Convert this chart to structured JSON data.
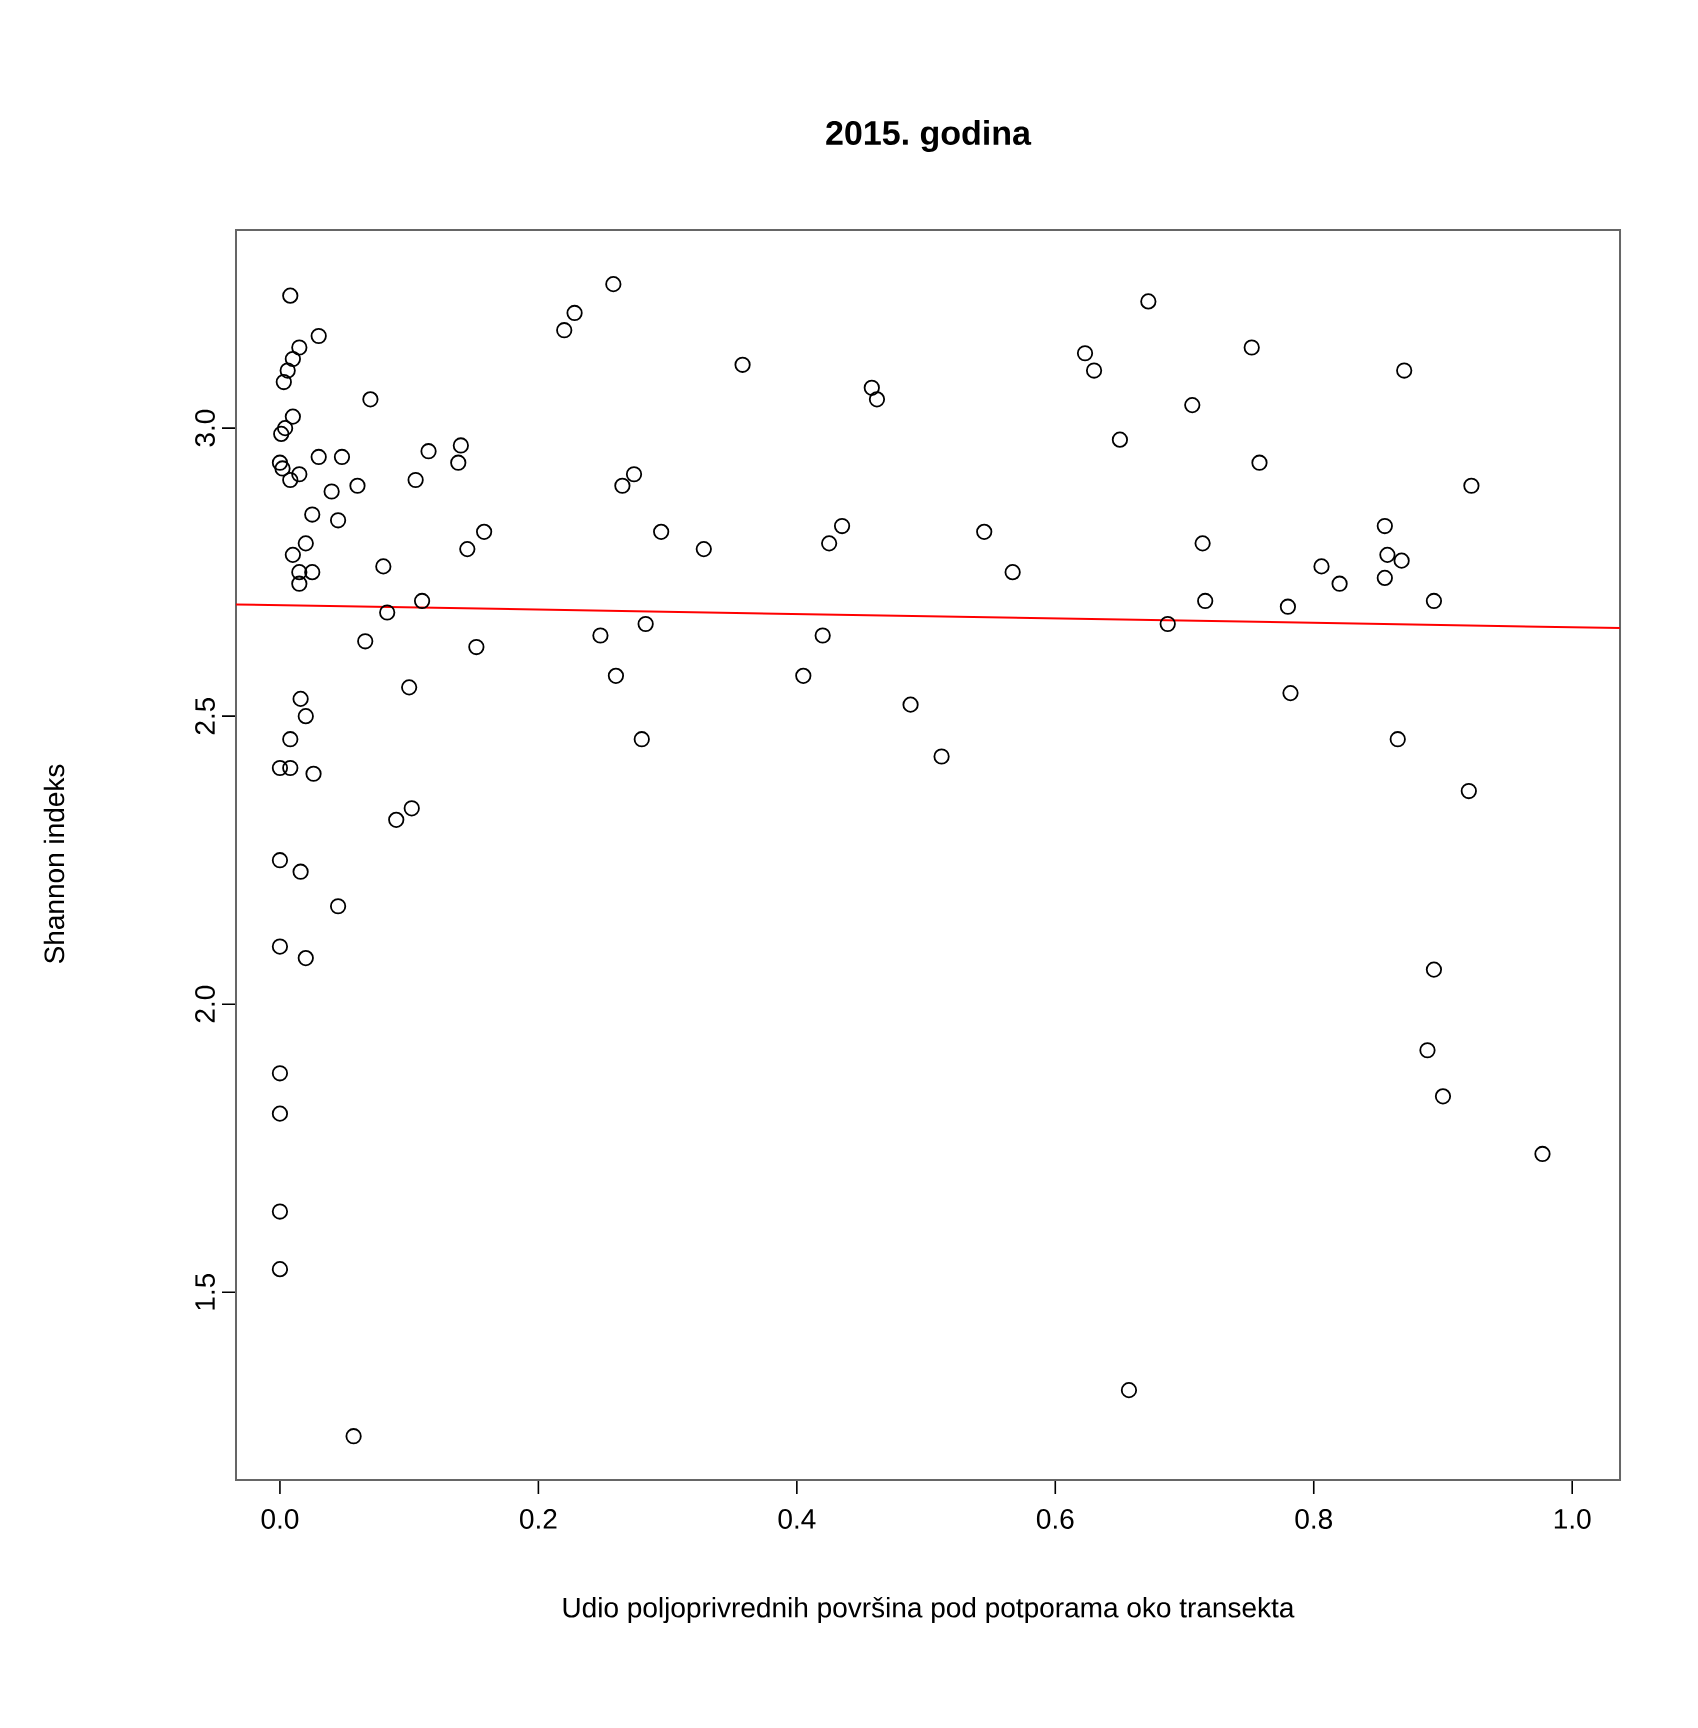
{
  "chart_data": {
    "type": "scatter",
    "title": "2015. godina",
    "xlabel": "Udio poljoprivrednih površina pod potporama oko transekta",
    "ylabel": "Shannon indeks",
    "xlim": [
      -0.034,
      1.037
    ],
    "ylim": [
      1.174,
      3.344
    ],
    "xticks": [
      {
        "value": 0,
        "label": "0.0"
      },
      0.2,
      0.4,
      0.6,
      0.8,
      {
        "value": 1,
        "label": "1.0"
      }
    ],
    "yticks": [
      1.5,
      {
        "value": 2,
        "label": "2.0"
      },
      2.5,
      {
        "value": 3,
        "label": "3.0"
      }
    ],
    "series": [
      {
        "marker": "circle",
        "color": "#000000",
        "x": [
          0.008,
          0.003,
          0.006,
          0.01,
          0.015,
          0.03,
          0.001,
          0.004,
          0.01,
          0.0,
          0.002,
          0.008,
          0.015,
          0.03,
          0.048,
          0.04,
          0.06,
          0.01,
          0.02,
          0.015,
          0.025,
          0.015,
          0.045,
          0.025,
          0.016,
          0.02,
          0.008,
          0.0,
          0.008,
          0.026,
          0.0,
          0.016,
          0.0,
          0.045,
          0.02,
          0.0,
          0.0,
          0.0,
          0.0,
          0.057,
          0.07,
          0.08,
          0.083,
          0.066,
          0.1,
          0.09,
          0.102,
          0.105,
          0.115,
          0.14,
          0.138,
          0.11,
          0.145,
          0.158,
          0.152,
          0.22,
          0.228,
          0.258,
          0.265,
          0.274,
          0.295,
          0.248,
          0.26,
          0.283,
          0.28,
          0.328,
          0.358,
          0.405,
          0.42,
          0.425,
          0.435,
          0.458,
          0.462,
          0.488,
          0.512,
          0.545,
          0.567,
          0.623,
          0.63,
          0.65,
          0.672,
          0.657,
          0.687,
          0.706,
          0.714,
          0.716,
          0.752,
          0.758,
          0.78,
          0.782,
          0.806,
          0.82,
          0.855,
          0.857,
          0.855,
          0.868,
          0.865,
          0.87,
          0.893,
          0.92,
          0.922,
          0.893,
          0.888,
          0.9,
          0.977
        ],
        "values": [
          3.23,
          3.08,
          3.1,
          3.12,
          3.14,
          3.16,
          2.99,
          3.0,
          3.02,
          2.94,
          2.93,
          2.91,
          2.92,
          2.95,
          2.95,
          2.89,
          2.9,
          2.78,
          2.8,
          2.75,
          2.75,
          2.73,
          2.84,
          2.85,
          2.53,
          2.5,
          2.46,
          2.41,
          2.41,
          2.4,
          2.25,
          2.23,
          2.1,
          2.17,
          2.08,
          1.88,
          1.81,
          1.64,
          1.54,
          1.25,
          3.05,
          2.76,
          2.68,
          2.63,
          2.55,
          2.32,
          2.34,
          2.91,
          2.96,
          2.97,
          2.94,
          2.7,
          2.79,
          2.82,
          2.62,
          3.17,
          3.2,
          3.25,
          2.9,
          2.92,
          2.82,
          2.64,
          2.57,
          2.66,
          2.46,
          2.79,
          3.11,
          2.57,
          2.64,
          2.8,
          2.83,
          3.07,
          3.05,
          2.52,
          2.43,
          2.82,
          2.75,
          3.13,
          3.1,
          2.98,
          3.22,
          1.33,
          2.66,
          3.04,
          2.8,
          2.7,
          3.14,
          2.94,
          2.69,
          2.54,
          2.76,
          2.73,
          2.83,
          2.78,
          2.74,
          2.77,
          2.46,
          3.1,
          2.7,
          2.37,
          2.9,
          2.06,
          1.92,
          1.84,
          1.74
        ]
      },
      {
        "type": "line",
        "marker": "none",
        "color": "#ff0000",
        "x": [
          -0.034,
          1.037
        ],
        "values": [
          2.694,
          2.653
        ]
      }
    ]
  }
}
